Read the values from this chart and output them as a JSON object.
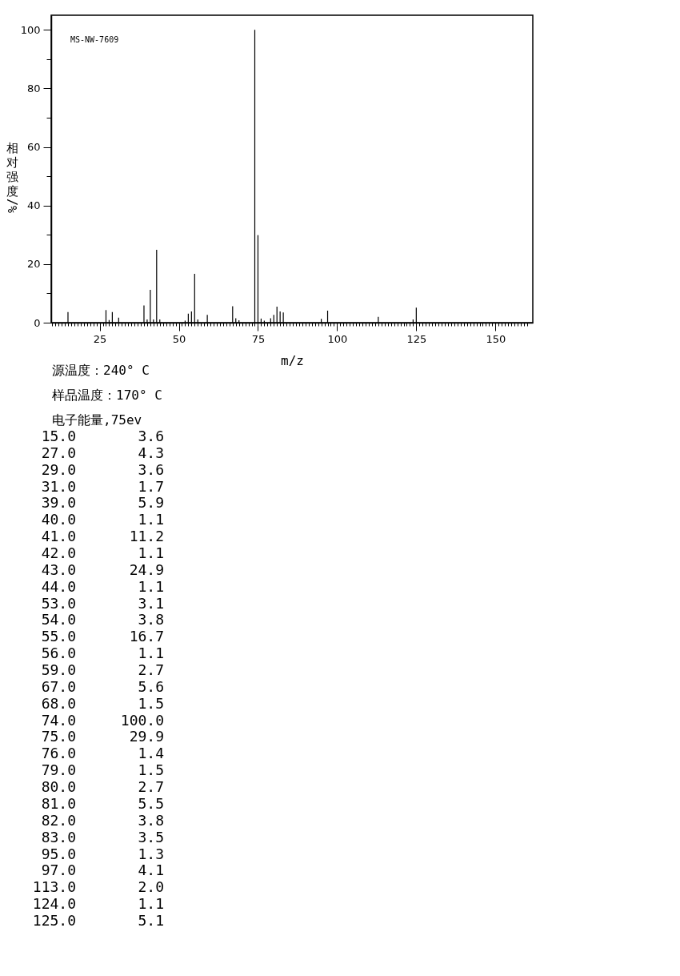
{
  "chart_data": [
    {
      "type": "bar",
      "xlabel": "m/z",
      "ylabel": "相对强度/%",
      "annotations": [
        "MS-NW-7609",
        "源温度：240° C",
        "样品温度：170° C",
        "电子能量,75ev"
      ],
      "x": [
        15,
        27,
        28,
        29,
        31,
        39,
        40,
        41,
        42,
        43,
        44,
        52,
        53,
        54,
        55,
        56,
        59,
        67,
        68,
        69,
        74,
        75,
        76,
        77,
        79,
        80,
        81,
        82,
        83,
        95,
        97,
        113,
        124,
        125
      ],
      "values": [
        3.6,
        4.3,
        0.9,
        3.6,
        1.7,
        5.9,
        1.1,
        11.2,
        1.1,
        24.9,
        1.1,
        0.7,
        3.1,
        3.8,
        16.7,
        1.1,
        2.7,
        5.6,
        1.5,
        0.8,
        100.0,
        29.9,
        1.4,
        0.7,
        1.5,
        2.7,
        5.5,
        3.8,
        3.5,
        1.3,
        4.1,
        2.0,
        1.1,
        5.1
      ],
      "color": "#000000",
      "xlim": [
        9.7,
        161.8
      ],
      "ylim": [
        0,
        105
      ],
      "xticks": [
        {
          "value": 10,
          "label": null
        },
        {
          "value": 11,
          "label": null
        },
        {
          "value": 12,
          "label": null
        },
        {
          "value": 13,
          "label": null
        },
        {
          "value": 14,
          "label": null
        },
        {
          "value": 15,
          "label": null
        },
        {
          "value": 16,
          "label": null
        },
        {
          "value": 17,
          "label": null
        },
        {
          "value": 18,
          "label": null
        },
        {
          "value": 19,
          "label": null
        },
        {
          "value": 20,
          "label": null
        },
        {
          "value": 21,
          "label": null
        },
        {
          "value": 22,
          "label": null
        },
        {
          "value": 23,
          "label": null
        },
        {
          "value": 24,
          "label": null
        },
        25,
        {
          "value": 26,
          "label": null
        },
        {
          "value": 27,
          "label": null
        },
        {
          "value": 28,
          "label": null
        },
        {
          "value": 29,
          "label": null
        },
        {
          "value": 30,
          "label": null
        },
        {
          "value": 31,
          "label": null
        },
        {
          "value": 32,
          "label": null
        },
        {
          "value": 33,
          "label": null
        },
        {
          "value": 34,
          "label": null
        },
        {
          "value": 35,
          "label": null
        },
        {
          "value": 36,
          "label": null
        },
        {
          "value": 37,
          "label": null
        },
        {
          "value": 38,
          "label": null
        },
        {
          "value": 39,
          "label": null
        },
        {
          "value": 40,
          "label": null
        },
        {
          "value": 41,
          "label": null
        },
        {
          "value": 42,
          "label": null
        },
        {
          "value": 43,
          "label": null
        },
        {
          "value": 44,
          "label": null
        },
        {
          "value": 45,
          "label": null
        },
        {
          "value": 46,
          "label": null
        },
        {
          "value": 47,
          "label": null
        },
        {
          "value": 48,
          "label": null
        },
        {
          "value": 49,
          "label": null
        },
        50,
        {
          "value": 51,
          "label": null
        },
        {
          "value": 52,
          "label": null
        },
        {
          "value": 53,
          "label": null
        },
        {
          "value": 54,
          "label": null
        },
        {
          "value": 55,
          "label": null
        },
        {
          "value": 56,
          "label": null
        },
        {
          "value": 57,
          "label": null
        },
        {
          "value": 58,
          "label": null
        },
        {
          "value": 59,
          "label": null
        },
        {
          "value": 60,
          "label": null
        },
        {
          "value": 61,
          "label": null
        },
        {
          "value": 62,
          "label": null
        },
        {
          "value": 63,
          "label": null
        },
        {
          "value": 64,
          "label": null
        },
        {
          "value": 65,
          "label": null
        },
        {
          "value": 66,
          "label": null
        },
        {
          "value": 67,
          "label": null
        },
        {
          "value": 68,
          "label": null
        },
        {
          "value": 69,
          "label": null
        },
        {
          "value": 70,
          "label": null
        },
        {
          "value": 71,
          "label": null
        },
        {
          "value": 72,
          "label": null
        },
        {
          "value": 73,
          "label": null
        },
        {
          "value": 74,
          "label": null
        },
        75,
        {
          "value": 76,
          "label": null
        },
        {
          "value": 77,
          "label": null
        },
        {
          "value": 78,
          "label": null
        },
        {
          "value": 79,
          "label": null
        },
        {
          "value": 80,
          "label": null
        },
        {
          "value": 81,
          "label": null
        },
        {
          "value": 82,
          "label": null
        },
        {
          "value": 83,
          "label": null
        },
        {
          "value": 84,
          "label": null
        },
        {
          "value": 85,
          "label": null
        },
        {
          "value": 86,
          "label": null
        },
        {
          "value": 87,
          "label": null
        },
        {
          "value": 88,
          "label": null
        },
        {
          "value": 89,
          "label": null
        },
        {
          "value": 90,
          "label": null
        },
        {
          "value": 91,
          "label": null
        },
        {
          "value": 92,
          "label": null
        },
        {
          "value": 93,
          "label": null
        },
        {
          "value": 94,
          "label": null
        },
        {
          "value": 95,
          "label": null
        },
        {
          "value": 96,
          "label": null
        },
        {
          "value": 97,
          "label": null
        },
        {
          "value": 98,
          "label": null
        },
        {
          "value": 99,
          "label": null
        },
        100,
        {
          "value": 101,
          "label": null
        },
        {
          "value": 102,
          "label": null
        },
        {
          "value": 103,
          "label": null
        },
        {
          "value": 104,
          "label": null
        },
        {
          "value": 105,
          "label": null
        },
        {
          "value": 106,
          "label": null
        },
        {
          "value": 107,
          "label": null
        },
        {
          "value": 108,
          "label": null
        },
        {
          "value": 109,
          "label": null
        },
        {
          "value": 110,
          "label": null
        },
        {
          "value": 111,
          "label": null
        },
        {
          "value": 112,
          "label": null
        },
        {
          "value": 113,
          "label": null
        },
        {
          "value": 114,
          "label": null
        },
        {
          "value": 115,
          "label": null
        },
        {
          "value": 116,
          "label": null
        },
        {
          "value": 117,
          "label": null
        },
        {
          "value": 118,
          "label": null
        },
        {
          "value": 119,
          "label": null
        },
        {
          "value": 120,
          "label": null
        },
        {
          "value": 121,
          "label": null
        },
        {
          "value": 122,
          "label": null
        },
        {
          "value": 123,
          "label": null
        },
        {
          "value": 124,
          "label": null
        },
        125,
        {
          "value": 126,
          "label": null
        },
        {
          "value": 127,
          "label": null
        },
        {
          "value": 128,
          "label": null
        },
        {
          "value": 129,
          "label": null
        },
        {
          "value": 130,
          "label": null
        },
        {
          "value": 131,
          "label": null
        },
        {
          "value": 132,
          "label": null
        },
        {
          "value": 133,
          "label": null
        },
        {
          "value": 134,
          "label": null
        },
        {
          "value": 135,
          "label": null
        },
        {
          "value": 136,
          "label": null
        },
        {
          "value": 137,
          "label": null
        },
        {
          "value": 138,
          "label": null
        },
        {
          "value": 139,
          "label": null
        },
        {
          "value": 140,
          "label": null
        },
        {
          "value": 141,
          "label": null
        },
        {
          "value": 142,
          "label": null
        },
        {
          "value": 143,
          "label": null
        },
        {
          "value": 144,
          "label": null
        },
        {
          "value": 145,
          "label": null
        },
        {
          "value": 146,
          "label": null
        },
        {
          "value": 147,
          "label": null
        },
        {
          "value": 148,
          "label": null
        },
        {
          "value": 149,
          "label": null
        },
        150,
        {
          "value": 151,
          "label": null
        },
        {
          "value": 152,
          "label": null
        },
        {
          "value": 153,
          "label": null
        },
        {
          "value": 154,
          "label": null
        },
        {
          "value": 155,
          "label": null
        },
        {
          "value": 156,
          "label": null
        },
        {
          "value": 157,
          "label": null
        },
        {
          "value": 158,
          "label": null
        },
        {
          "value": 159,
          "label": null
        },
        {
          "value": 160,
          "label": null
        }
      ],
      "yticks": [
        0,
        {
          "value": 10,
          "label": null
        },
        20,
        {
          "value": 30,
          "label": null
        },
        40,
        {
          "value": 50,
          "label": null
        },
        60,
        {
          "value": 70,
          "label": null
        },
        80,
        {
          "value": 90,
          "label": null
        },
        100
      ]
    },
    {
      "type": "other",
      "annotations": [
        "15.0",
        "3.6",
        "27.0",
        "4.3",
        "29.0",
        "3.6",
        "31.0",
        "1.7",
        "39.0",
        "5.9",
        "40.0",
        "1.1",
        "41.0",
        "11.2",
        "42.0",
        "1.1",
        "43.0",
        "24.9",
        "44.0",
        "1.1",
        "53.0",
        "3.1",
        "54.0",
        "3.8",
        "55.0",
        "16.7",
        "56.0",
        "1.1",
        "59.0",
        "2.7",
        "67.0",
        "5.6",
        "68.0",
        "1.5",
        "74.0",
        "100.0",
        "75.0",
        "29.9",
        "76.0",
        "1.4",
        "79.0",
        "1.5",
        "80.0",
        "2.7",
        "81.0",
        "5.5",
        "82.0",
        "3.8",
        "83.0",
        "3.5",
        "95.0",
        "1.3",
        "97.0",
        "4.1",
        "113.0",
        "2.0",
        "124.0",
        "1.1",
        "125.0",
        "5.1"
      ]
    }
  ]
}
